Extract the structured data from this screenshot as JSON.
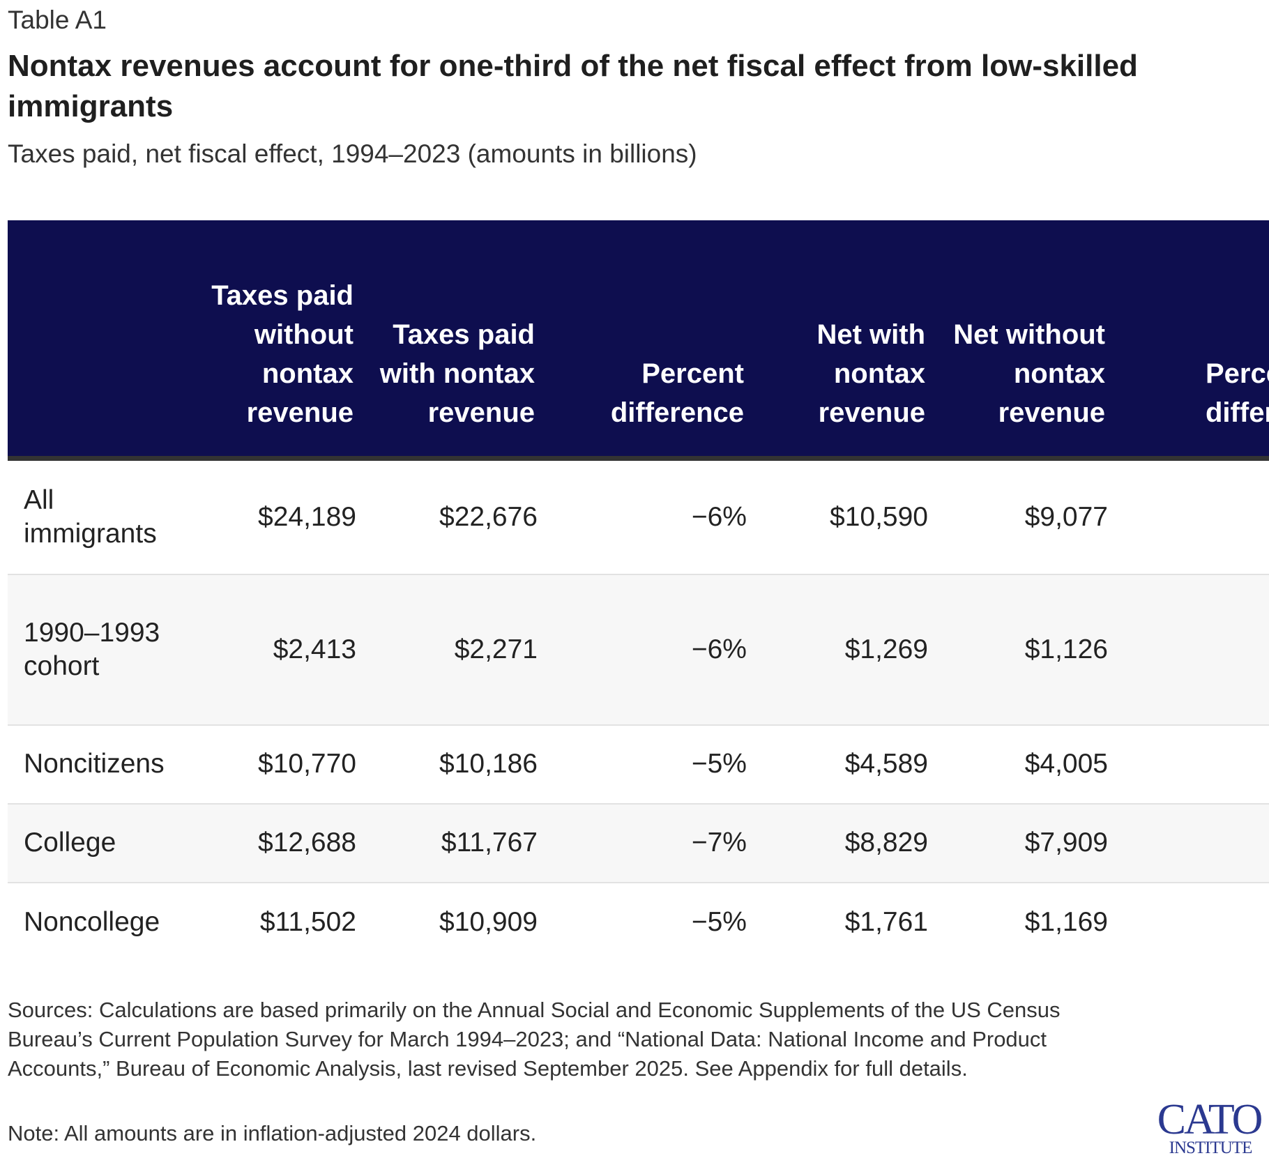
{
  "table_label": "Table A1",
  "title": "Nontax revenues account for one-third of the net fiscal effect from low-skilled immigrants",
  "subtitle": "Taxes paid, net fiscal effect, 1994–2023 (amounts in billions)",
  "columns": [
    "",
    "Taxes paid without nontax revenue",
    "Taxes paid with nontax revenue",
    "Percent difference",
    "Net with nontax revenue",
    "Net without nontax revenue",
    "Percent difference"
  ],
  "rows": [
    {
      "label": "All immigrants",
      "values": [
        "$24,189",
        "$22,676",
        "−6%",
        "$10,590",
        "$9,077",
        "−"
      ]
    },
    {
      "label": "1990–1993 cohort",
      "values": [
        "$2,413",
        "$2,271",
        "−6%",
        "$1,269",
        "$1,126",
        "−"
      ]
    },
    {
      "label": "Noncitizens",
      "values": [
        "$10,770",
        "$10,186",
        "−5%",
        "$4,589",
        "$4,005",
        "−"
      ]
    },
    {
      "label": "College",
      "values": [
        "$12,688",
        "$11,767",
        "−7%",
        "$8,829",
        "$7,909",
        "−"
      ]
    },
    {
      "label": "Noncollege",
      "values": [
        "$11,502",
        "$10,909",
        "−5%",
        "$1,761",
        "$1,169",
        "−"
      ]
    }
  ],
  "sources": "Sources: Calculations are based primarily on the Annual Social and Economic Supplements of the US Census Bureau’s Current Population Survey for March 1994–2023; and “National Data: National Income and Product Accounts,” Bureau of Economic Analysis, last revised September 2025. See Appendix for full details.",
  "note": "Note: All amounts are in inflation-adjusted 2024 dollars.",
  "logo": {
    "line1": "CATO",
    "line2": "INSTITUTE",
    "color": "#2b3990"
  },
  "colors": {
    "header_bg": "#0e0e4f",
    "header_text": "#ffffff",
    "row_shade": "#f7f7f7",
    "divider": "#e2e2e2"
  },
  "chart_data": {
    "type": "table",
    "title": "Nontax revenues account for one-third of the net fiscal effect from low-skilled immigrants",
    "subtitle": "Taxes paid, net fiscal effect, 1994–2023 (amounts in billions)",
    "columns": [
      "",
      "Taxes paid without nontax revenue",
      "Taxes paid with nontax revenue",
      "Percent difference",
      "Net with nontax revenue",
      "Net without nontax revenue",
      "Percent difference"
    ],
    "rows": [
      [
        "All immigrants",
        "$24,189",
        "$22,676",
        "−6%",
        "$10,590",
        "$9,077",
        "−"
      ],
      [
        "1990–1993 cohort",
        "$2,413",
        "$2,271",
        "−6%",
        "$1,269",
        "$1,126",
        "−"
      ],
      [
        "Noncitizens",
        "$10,770",
        "$10,186",
        "−5%",
        "$4,589",
        "$4,005",
        "−"
      ],
      [
        "College",
        "$12,688",
        "$11,767",
        "−7%",
        "$8,829",
        "$7,909",
        "−"
      ],
      [
        "Noncollege",
        "$11,502",
        "$10,909",
        "−5%",
        "$1,761",
        "$1,169",
        "−"
      ]
    ]
  }
}
